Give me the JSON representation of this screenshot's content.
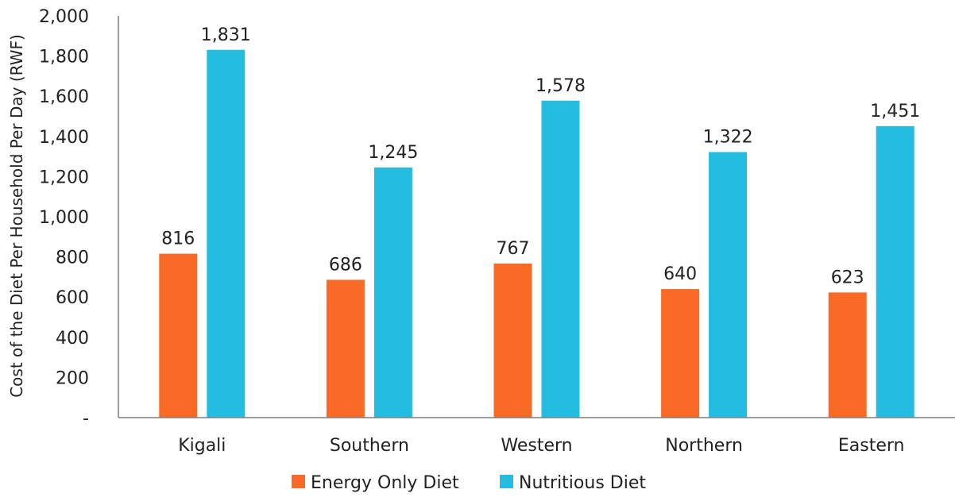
{
  "chart_data": {
    "type": "bar",
    "categories": [
      "Kigali",
      "Southern",
      "Western",
      "Northern",
      "Eastern"
    ],
    "series": [
      {
        "name": "Energy Only Diet",
        "values": [
          816,
          686,
          767,
          640,
          623
        ],
        "labels": [
          "816",
          "686",
          "767",
          "640",
          "623"
        ],
        "color": "#f96a26"
      },
      {
        "name": "Nutritious Diet",
        "values": [
          1831,
          1245,
          1578,
          1322,
          1451
        ],
        "labels": [
          "1,831",
          "1,245",
          "1,578",
          "1,322",
          "1,451"
        ],
        "color": "#25bce2"
      }
    ],
    "ylabel": "Cost of the Diet Per Household Per Day (RWF)",
    "xlabel": "",
    "ylim": [
      0,
      2000
    ],
    "yticks": [
      0,
      200,
      400,
      600,
      800,
      1000,
      1200,
      1400,
      1600,
      1800,
      2000
    ],
    "ytick_labels": [
      "-",
      "200",
      "400",
      "600",
      "800",
      "1,000",
      "1,200",
      "1,400",
      "1,600",
      "1,800",
      "2,000"
    ],
    "grid": false,
    "legend_position": "bottom"
  }
}
